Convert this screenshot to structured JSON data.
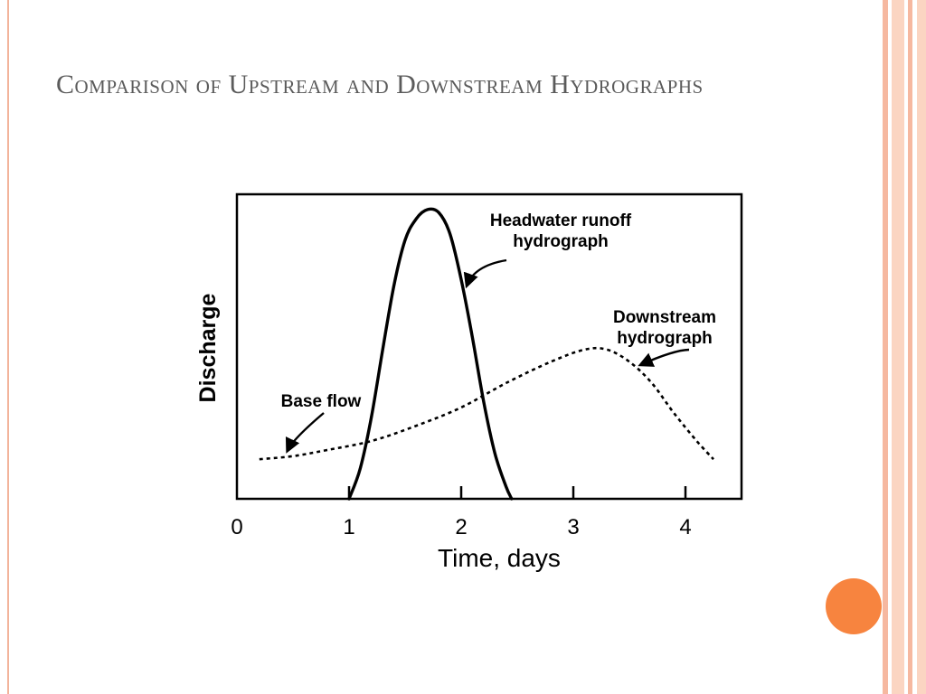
{
  "slide": {
    "title": "Comparison of Upstream and Downstream Hydrographs"
  },
  "theme": {
    "title_color": "#5b5b5b",
    "accent": "#f7843f",
    "stripe_light": "#fbd5c2",
    "stripe_mid": "#f6b8a0",
    "rule_color": "#f3b49b",
    "ink": "#000000"
  },
  "chart_data": {
    "type": "line",
    "title": "",
    "xlabel": "Time, days",
    "ylabel": "Discharge",
    "xlim": [
      0,
      4.5
    ],
    "ylim": [
      0,
      10
    ],
    "x_ticks": [
      "0",
      "1",
      "2",
      "3",
      "4"
    ],
    "grid": false,
    "series": [
      {
        "name": "Headwater runoff hydrograph",
        "style": "solid",
        "points": [
          [
            1.0,
            0.0
          ],
          [
            1.1,
            1.0
          ],
          [
            1.2,
            2.7
          ],
          [
            1.3,
            4.9
          ],
          [
            1.4,
            7.0
          ],
          [
            1.5,
            8.5
          ],
          [
            1.6,
            9.2
          ],
          [
            1.7,
            9.5
          ],
          [
            1.8,
            9.4
          ],
          [
            1.9,
            8.7
          ],
          [
            2.0,
            7.2
          ],
          [
            2.1,
            5.3
          ],
          [
            2.2,
            3.2
          ],
          [
            2.3,
            1.5
          ],
          [
            2.4,
            0.4
          ],
          [
            2.45,
            0.0
          ]
        ]
      },
      {
        "name": "Downstream hydrograph",
        "style": "dashed",
        "points": [
          [
            0.2,
            1.3
          ],
          [
            0.5,
            1.4
          ],
          [
            0.8,
            1.6
          ],
          [
            1.2,
            1.9
          ],
          [
            1.6,
            2.4
          ],
          [
            2.0,
            3.0
          ],
          [
            2.4,
            3.8
          ],
          [
            2.8,
            4.5
          ],
          [
            3.1,
            4.9
          ],
          [
            3.3,
            4.9
          ],
          [
            3.5,
            4.5
          ],
          [
            3.7,
            3.8
          ],
          [
            3.9,
            2.8
          ],
          [
            4.1,
            1.9
          ],
          [
            4.25,
            1.3
          ]
        ]
      }
    ],
    "annotations": [
      {
        "id": "base",
        "text": "Base flow",
        "lines": [
          "Base flow"
        ],
        "points_to": [
          0.45,
          1.4
        ]
      },
      {
        "id": "headwater",
        "text": "Headwater runoff hydrograph",
        "lines": [
          "Headwater runoff",
          "hydrograph"
        ],
        "points_to": [
          2.05,
          7.0
        ]
      },
      {
        "id": "downstream",
        "text": "Downstream hydrograph",
        "lines": [
          "Downstream",
          "hydrograph"
        ],
        "points_to": [
          3.6,
          4.4
        ]
      }
    ]
  }
}
